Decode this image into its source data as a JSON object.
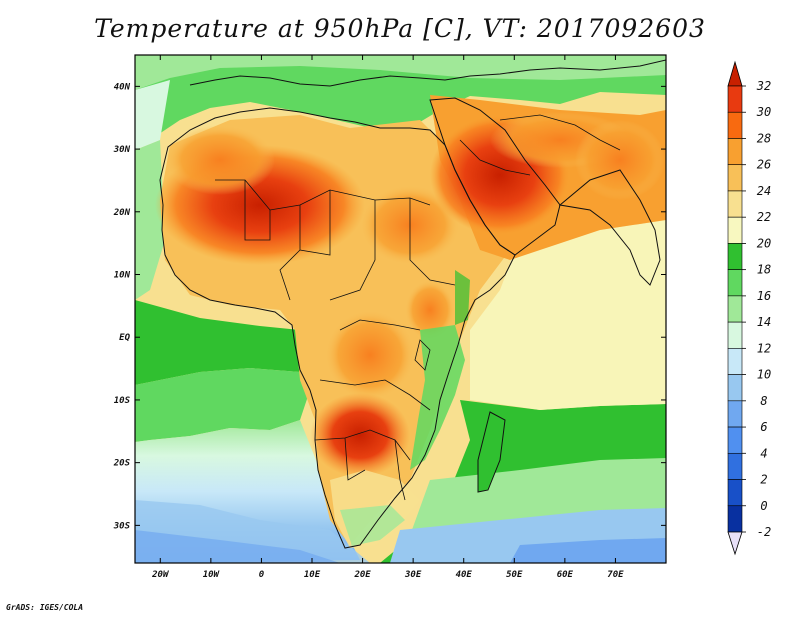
{
  "title": "Temperature at 950hPa [C], VT: 2017092603",
  "credit": "GrADS: IGES/COLA",
  "map": {
    "lon_range": [
      -25,
      80
    ],
    "lat_range": [
      -36,
      45
    ],
    "lat_ticks": [
      {
        "lat": 40,
        "label": "40N"
      },
      {
        "lat": 30,
        "label": "30N"
      },
      {
        "lat": 20,
        "label": "20N"
      },
      {
        "lat": 10,
        "label": "10N"
      },
      {
        "lat": 0,
        "label": "EQ"
      },
      {
        "lat": -10,
        "label": "10S"
      },
      {
        "lat": -20,
        "label": "20S"
      },
      {
        "lat": -30,
        "label": "30S"
      }
    ],
    "lon_ticks": [
      {
        "lon": -20,
        "label": "20W"
      },
      {
        "lon": -10,
        "label": "10W"
      },
      {
        "lon": 0,
        "label": "0"
      },
      {
        "lon": 10,
        "label": "10E"
      },
      {
        "lon": 20,
        "label": "20E"
      },
      {
        "lon": 30,
        "label": "30E"
      },
      {
        "lon": 40,
        "label": "40E"
      },
      {
        "lon": 50,
        "label": "50E"
      },
      {
        "lon": 60,
        "label": "60E"
      },
      {
        "lon": 70,
        "label": "70E"
      }
    ]
  },
  "colorbar": {
    "levels": [
      "32",
      "30",
      "28",
      "26",
      "24",
      "22",
      "20",
      "18",
      "16",
      "14",
      "12",
      "10",
      "8",
      "6",
      "4",
      "2",
      "0",
      "-2"
    ],
    "colors": [
      "#c82000",
      "#e83a10",
      "#f86a10",
      "#f8a030",
      "#f8c058",
      "#f8e090",
      "#f8f8c0",
      "#30c030",
      "#60d860",
      "#a0e898",
      "#d8f8e0",
      "#c8e8f8",
      "#98c8f0",
      "#70a8f0",
      "#5090f0",
      "#3070e0",
      "#1850c8",
      "#0830a0",
      "#082060"
    ]
  }
}
